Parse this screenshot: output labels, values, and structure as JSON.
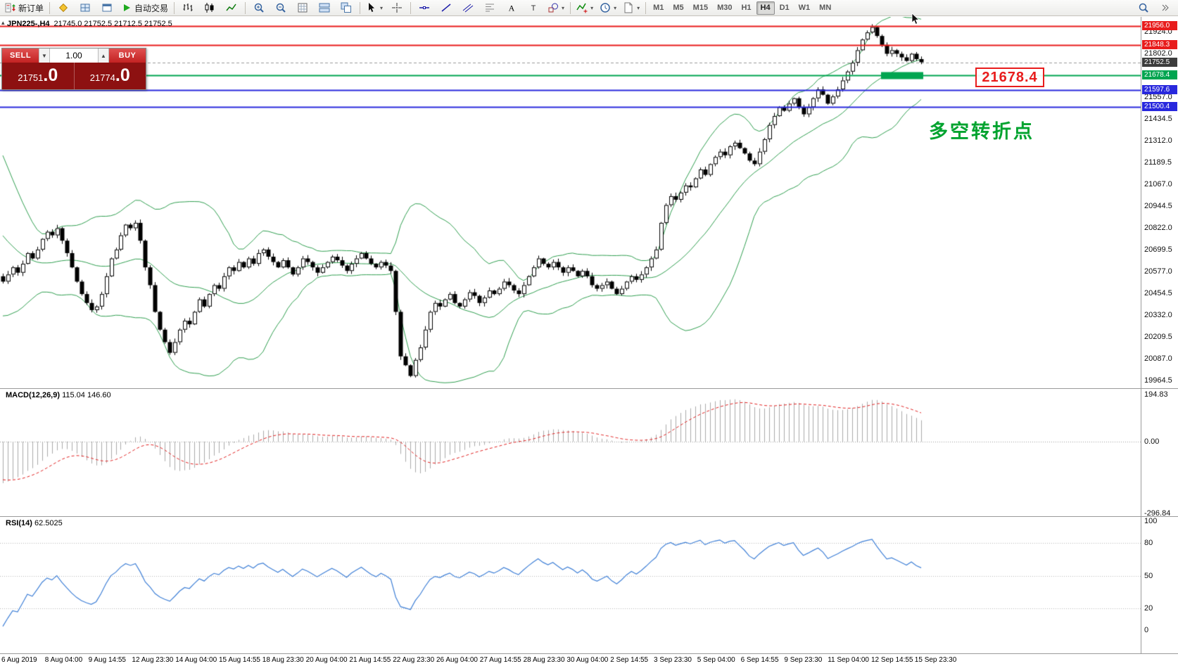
{
  "toolbar": {
    "groups": [
      {
        "name": "order-group",
        "buttons": [
          {
            "name": "new-order-button",
            "icon": "new-order",
            "label": "新订单"
          }
        ]
      },
      {
        "name": "panels-group",
        "buttons": [
          {
            "name": "market-watch-button",
            "icon": "diamond"
          },
          {
            "name": "chart-profiles-button",
            "icon": "profile"
          },
          {
            "name": "data-window-button",
            "icon": "window"
          },
          {
            "name": "auto-trading-button",
            "icon": "play",
            "label": "自动交易"
          }
        ]
      },
      {
        "name": "chart-type-group",
        "buttons": [
          {
            "name": "bar-chart-button",
            "icon": "bars"
          },
          {
            "name": "candlestick-chart-button",
            "icon": "candles"
          },
          {
            "name": "line-chart-button",
            "icon": "linechart"
          }
        ]
      },
      {
        "name": "zoom-group",
        "buttons": [
          {
            "name": "zoom-in-button",
            "icon": "zoom-in"
          },
          {
            "name": "zoom-out-button",
            "icon": "zoom-out"
          },
          {
            "name": "auto-arrange-button",
            "icon": "gridtable"
          },
          {
            "name": "tile-windows-button",
            "icon": "tileh"
          },
          {
            "name": "cascade-windows-button",
            "icon": "tilev"
          }
        ]
      },
      {
        "name": "pointer-group",
        "buttons": [
          {
            "name": "cursor-button",
            "icon": "cursor",
            "dropdown": true
          },
          {
            "name": "crosshair-button",
            "icon": "crosshair"
          }
        ]
      },
      {
        "name": "drawing-group",
        "buttons": [
          {
            "name": "horizontal-line-button",
            "icon": "hline"
          },
          {
            "name": "trendline-button",
            "icon": "trendline"
          },
          {
            "name": "channel-button",
            "icon": "channel"
          },
          {
            "name": "fibonacci-button",
            "icon": "fibo"
          },
          {
            "name": "text-button",
            "icon": "text-a"
          },
          {
            "name": "text-label-button",
            "icon": "text-t"
          },
          {
            "name": "shapes-button",
            "icon": "shapes",
            "dropdown": true
          }
        ]
      },
      {
        "name": "indicator-group",
        "buttons": [
          {
            "name": "indicators-button",
            "icon": "indicator",
            "dropdown": true
          },
          {
            "name": "periods-button",
            "icon": "clock",
            "dropdown": true
          },
          {
            "name": "templates-button",
            "icon": "template",
            "dropdown": true
          }
        ]
      }
    ],
    "timeframes": [
      {
        "label": "M1"
      },
      {
        "label": "M5"
      },
      {
        "label": "M15"
      },
      {
        "label": "M30"
      },
      {
        "label": "H1"
      },
      {
        "label": "H4",
        "active": true
      },
      {
        "label": "D1"
      },
      {
        "label": "W1"
      },
      {
        "label": "MN"
      }
    ],
    "right_buttons": [
      {
        "name": "search-button",
        "icon": "search"
      },
      {
        "name": "toolbar-overflow-button",
        "icon": "chevr"
      }
    ]
  },
  "chart_header": {
    "collapse_icon": "▴",
    "symbol_period": "JPN225-,H4",
    "ohlc": "21745.0 21752.5 21712.5 21752.5"
  },
  "trade_panel": {
    "sell_label": "SELL",
    "buy_label": "BUY",
    "volume": "1.00",
    "sell_price_int": "21751",
    "sell_price_dec": ".0",
    "buy_price_int": "21774",
    "buy_price_dec": ".0"
  },
  "overlays": {
    "annotation_price": "21678.4",
    "note_text": "多空转折点"
  },
  "chart_data": {
    "type": "candlestick",
    "symbol": "JPN225-",
    "timeframe": "H4",
    "price_axis": {
      "anchor_top_price": 21956.0,
      "anchor_bottom_price": 19964.5,
      "ticks": [
        21924.0,
        21802.0,
        21557.0,
        21434.5,
        21312.0,
        21189.5,
        21067.0,
        20944.5,
        20822.0,
        20699.5,
        20577.0,
        20454.5,
        20332.0,
        20209.5,
        20087.0,
        19964.5
      ],
      "tags": [
        {
          "label": "21956.0",
          "price": 21956.0,
          "color": "#e81c1c"
        },
        {
          "label": "21848.3",
          "price": 21848.3,
          "color": "#e81c1c"
        },
        {
          "label": "21752.5",
          "price": 21752.5,
          "color": "#3c3c3c"
        },
        {
          "label": "21678.4",
          "price": 21678.4,
          "color": "#00a550"
        },
        {
          "label": "21597.6",
          "price": 21597.6,
          "color": "#2828dd"
        },
        {
          "label": "21500.4",
          "price": 21500.4,
          "color": "#2828dd"
        }
      ]
    },
    "levels": [
      {
        "price": 21956.0,
        "color": "#e81c1c",
        "width": 2
      },
      {
        "price": 21848.3,
        "color": "#e81c1c",
        "width": 2
      },
      {
        "price": 21678.4,
        "color": "#00a550",
        "width": 2,
        "highlighted": true
      },
      {
        "price": 21597.6,
        "color": "#2828dd",
        "width": 2
      },
      {
        "price": 21500.4,
        "color": "#2828dd",
        "width": 2
      }
    ],
    "current_price": 21752.5,
    "bollinger": {
      "period": 20,
      "deviation": 2,
      "color": "#2f9e4f"
    },
    "warmup_close": [
      21250,
      21200,
      21150,
      21100,
      21050,
      21000,
      20950,
      20900,
      20850,
      20800,
      20750,
      20700,
      20660,
      20620,
      20590,
      20560,
      20540,
      20530,
      20540,
      20550
    ],
    "close": [
      20520,
      20560,
      20600,
      20570,
      20620,
      20680,
      20650,
      20700,
      20760,
      20800,
      20780,
      20820,
      20750,
      20680,
      20600,
      20520,
      20450,
      20400,
      20360,
      20380,
      20450,
      20550,
      20650,
      20700,
      20780,
      20840,
      20820,
      20850,
      20750,
      20600,
      20500,
      20350,
      20250,
      20180,
      20120,
      20180,
      20250,
      20300,
      20280,
      20350,
      20420,
      20380,
      20450,
      20500,
      20480,
      20550,
      20600,
      20580,
      20630,
      20600,
      20650,
      20620,
      20680,
      20700,
      20660,
      20630,
      20600,
      20640,
      20600,
      20560,
      20600,
      20650,
      20630,
      20600,
      20570,
      20600,
      20630,
      20660,
      20640,
      20610,
      20580,
      20620,
      20650,
      20680,
      20650,
      20620,
      20600,
      20630,
      20610,
      20580,
      20350,
      20100,
      20050,
      19990,
      20080,
      20150,
      20250,
      20350,
      20400,
      20380,
      20420,
      20450,
      20400,
      20380,
      20420,
      20460,
      20440,
      20400,
      20430,
      20470,
      20450,
      20480,
      20520,
      20500,
      20470,
      20450,
      20500,
      20550,
      20600,
      20650,
      20620,
      20600,
      20630,
      20600,
      20570,
      20600,
      20580,
      20550,
      20580,
      20550,
      20500,
      20480,
      20500,
      20520,
      20480,
      20450,
      20480,
      20520,
      20550,
      20530,
      20560,
      20600,
      20650,
      20700,
      20850,
      20950,
      21000,
      20980,
      21020,
      21060,
      21050,
      21100,
      21150,
      21120,
      21180,
      21220,
      21250,
      21230,
      21280,
      21300,
      21270,
      21240,
      21200,
      21180,
      21250,
      21320,
      21400,
      21450,
      21500,
      21480,
      21520,
      21550,
      21500,
      21460,
      21500,
      21550,
      21600,
      21570,
      21520,
      21560,
      21600,
      21650,
      21700,
      21750,
      21820,
      21880,
      21920,
      21950,
      21900,
      21850,
      21800,
      21820,
      21800,
      21780,
      21760,
      21800,
      21770,
      21752.5
    ],
    "macd": {
      "label": "MACD(12,26,9)",
      "display": "115.04 146.60",
      "fast": 12,
      "slow": 26,
      "signal_period": 9,
      "axis": [
        {
          "label": "194.83",
          "value": 194.83
        },
        {
          "label": "0.00",
          "value": 0
        },
        {
          "label": "-296.84",
          "value": -296.84
        }
      ],
      "bar_color": "#aaaaaa",
      "signal_color": "#e02020"
    },
    "rsi": {
      "label": "RSI(14)",
      "display": "62.5025",
      "period": 14,
      "axis": [
        {
          "label": "100",
          "value": 100
        },
        {
          "label": "80",
          "value": 80
        },
        {
          "label": "50",
          "value": 50
        },
        {
          "label": "20",
          "value": 20
        },
        {
          "label": "0",
          "value": 0
        }
      ],
      "levels": [
        80,
        50,
        20
      ],
      "color": "#3e7fd6"
    },
    "dates": [
      "6 Aug 2019",
      "8 Aug 04:00",
      "9 Aug 14:55",
      "12 Aug 23:30",
      "14 Aug 04:00",
      "15 Aug 14:55",
      "18 Aug 23:30",
      "20 Aug 04:00",
      "21 Aug 14:55",
      "22 Aug 23:30",
      "26 Aug 04:00",
      "27 Aug 14:55",
      "28 Aug 23:30",
      "30 Aug 04:00",
      "2 Sep 14:55",
      "3 Sep 23:30",
      "5 Sep 04:00",
      "6 Sep 14:55",
      "9 Sep 23:30",
      "11 Sep 04:00",
      "12 Sep 14:55",
      "15 Sep 23:30"
    ]
  }
}
